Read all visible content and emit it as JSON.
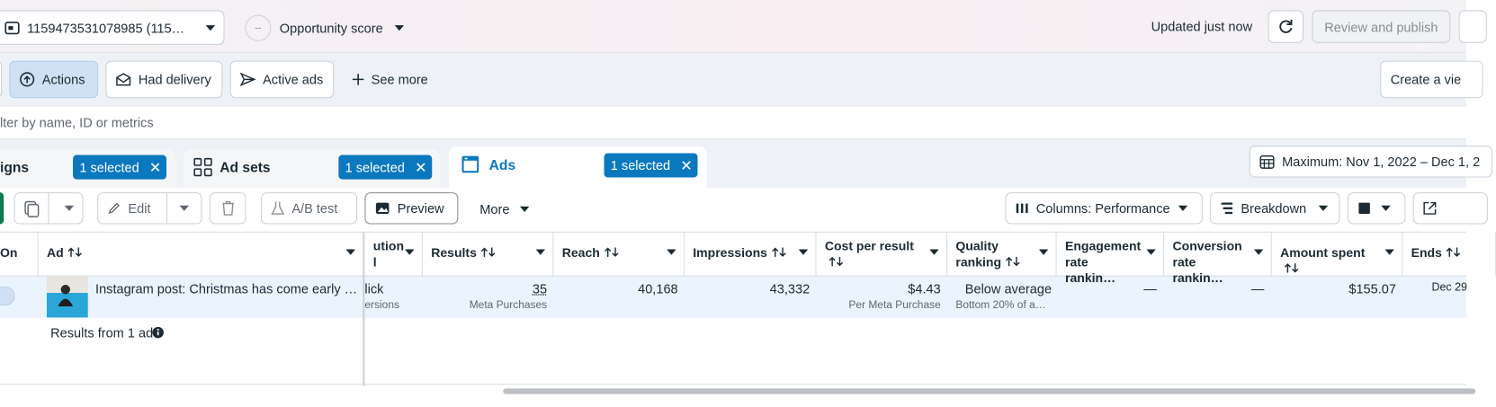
{
  "top_bar": {
    "account": "1159473531078985 (115…",
    "opportunity_value": "--",
    "opportunity": "Opportunity score",
    "updated": "Updated just now",
    "review": "Review and publish"
  },
  "filters": {
    "buttons": [
      "Actions",
      "Had delivery",
      "Active ads",
      "See more"
    ],
    "create_view": "Create a vie",
    "search_placeholder": "lter by name, ID or metrics"
  },
  "tabs": [
    {
      "label": "igns",
      "selected": "1 selected"
    },
    {
      "label": "Ad sets",
      "selected": "1 selected"
    },
    {
      "label": "Ads",
      "selected": "1 selected"
    }
  ],
  "date_range": "Maximum: Nov 1, 2022 – Dec 1, 2",
  "toolbar": {
    "edit": "Edit",
    "ab_test": "A/B test",
    "preview": "Preview",
    "more": "More",
    "columns": "Columns: Performance",
    "breakdown": "Breakdown"
  },
  "table": {
    "headers": [
      "On",
      "Ad",
      "ution\nl",
      "Results",
      "Reach",
      "Impressions",
      "Cost per result",
      "Quality ranking",
      "Engagement rate rankin…",
      "Conversion rate rankin…",
      "Amount spent",
      "Ends"
    ],
    "rows": [
      {
        "ad": "Instagram post: Christmas has come early …",
        "attribution": "lick",
        "attribution_sub": "ersions",
        "results": "35",
        "results_sub": "Meta Purchases",
        "reach": "40,168",
        "impressions": "43,332",
        "cost_per_result": "$4.43",
        "cost_sub": "Per Meta Purchase",
        "quality": "Below average",
        "quality_sub": "Bottom 20% of a…",
        "engagement": "—",
        "conversion": "—",
        "amount_spent": "$155.07",
        "ends": "Dec 29"
      }
    ],
    "footer": "Results from 1 ad"
  }
}
